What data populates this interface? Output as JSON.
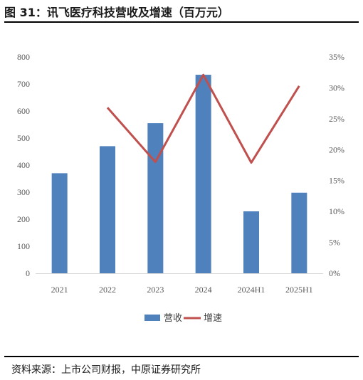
{
  "figure": {
    "title": "图 31：讯飞医疗科技营收及增速（百万元）",
    "source": "资料来源：上市公司财报，中原证券研究所"
  },
  "chart_data": {
    "type": "bar",
    "categories": [
      "2021",
      "2022",
      "2023",
      "2024",
      "2024H1",
      "2025H1"
    ],
    "series": [
      {
        "name": "营收",
        "type": "bar",
        "axis": "left",
        "color": "#4f81bd",
        "values": [
          370,
          470,
          555,
          734,
          229,
          298
        ]
      },
      {
        "name": "增速",
        "type": "line",
        "axis": "right",
        "color": "#c0504d",
        "values": [
          null,
          26.8,
          18.0,
          32.1,
          17.9,
          30.3
        ]
      }
    ],
    "y_left": {
      "min": 0,
      "max": 800,
      "ticks": [
        0,
        100,
        200,
        300,
        400,
        500,
        600,
        700,
        800
      ]
    },
    "y_right": {
      "min": 0,
      "max": 35,
      "ticks": [
        "0%",
        "5%",
        "10%",
        "15%",
        "20%",
        "25%",
        "30%",
        "35%"
      ]
    },
    "legend": {
      "position": "bottom"
    },
    "grid": false
  }
}
